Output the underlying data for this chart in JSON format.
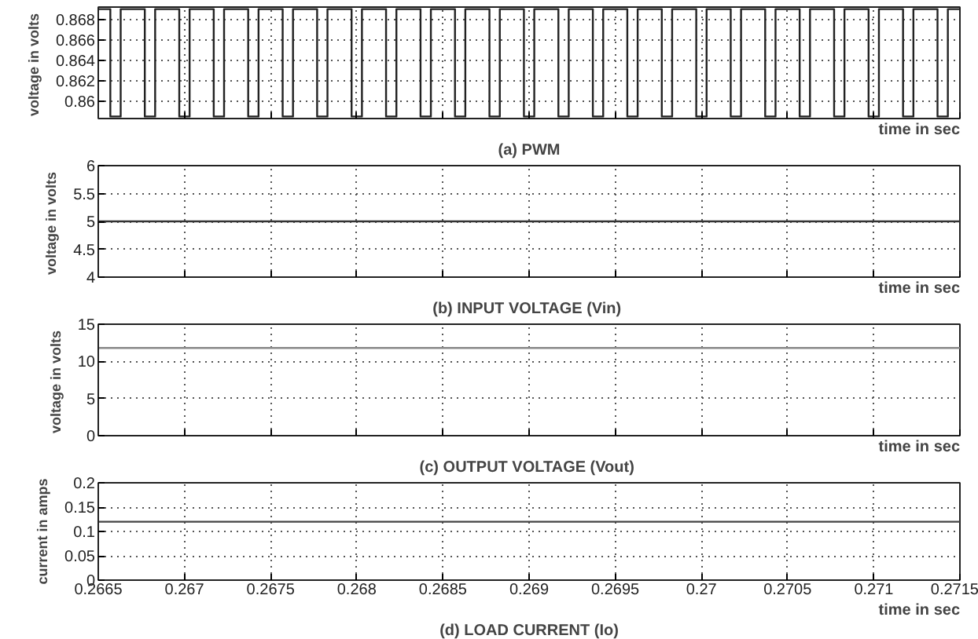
{
  "chart_data": [
    {
      "type": "step",
      "title": "(a) PWM",
      "xlabel": "time in sec",
      "ylabel": "voltage  in volts",
      "xlim": [
        0.2665,
        0.2715
      ],
      "ylim": [
        0.8583,
        0.8692
      ],
      "xticks": [
        0.2665,
        0.267,
        0.2675,
        0.268,
        0.2685,
        0.269,
        0.2695,
        0.27,
        0.2705,
        0.271,
        0.2715
      ],
      "yticks": [
        0.86,
        0.862,
        0.864,
        0.866,
        0.868
      ],
      "grid": true,
      "tick_labels": "y",
      "line_style": "solid",
      "series": [
        {
          "color": "#222222",
          "x": [
            0.2665,
            0.26657,
            0.26663,
            0.26677,
            0.26683,
            0.26697,
            0.26703,
            0.26717,
            0.26723,
            0.26737,
            0.26743,
            0.26757,
            0.26763,
            0.26777,
            0.26783,
            0.26797,
            0.26803,
            0.26817,
            0.26823,
            0.26837,
            0.26843,
            0.26857,
            0.26863,
            0.26877,
            0.26883,
            0.26897,
            0.26903,
            0.26917,
            0.26923,
            0.26937,
            0.26943,
            0.26957,
            0.26963,
            0.26977,
            0.26983,
            0.26997,
            0.27003,
            0.27017,
            0.27023,
            0.27037,
            0.27043,
            0.27057,
            0.27063,
            0.27077,
            0.27083,
            0.27097,
            0.27103,
            0.27117,
            0.27123,
            0.27137,
            0.27143,
            0.2715
          ],
          "values": [
            0.869,
            0.8585,
            0.869,
            0.8585,
            0.869,
            0.8585,
            0.869,
            0.8585,
            0.869,
            0.8585,
            0.869,
            0.8585,
            0.869,
            0.8585,
            0.869,
            0.8585,
            0.869,
            0.8585,
            0.869,
            0.8585,
            0.869,
            0.8585,
            0.869,
            0.8585,
            0.869,
            0.8585,
            0.869,
            0.8585,
            0.869,
            0.8585,
            0.869,
            0.8585,
            0.869,
            0.8585,
            0.869,
            0.8585,
            0.869,
            0.8585,
            0.869,
            0.8585,
            0.869,
            0.8585,
            0.869,
            0.8585,
            0.869,
            0.8585,
            0.869,
            0.8585,
            0.869,
            0.8585,
            0.869,
            0.869
          ]
        }
      ]
    },
    {
      "type": "line",
      "title": "(b) INPUT VOLTAGE  (Vin)",
      "xlabel": "time in sec",
      "ylabel": "voltage  in volts",
      "xlim": [
        0.2665,
        0.2715
      ],
      "ylim": [
        4,
        6
      ],
      "xticks": [
        0.2665,
        0.267,
        0.2675,
        0.268,
        0.2685,
        0.269,
        0.2695,
        0.27,
        0.2705,
        0.271,
        0.2715
      ],
      "yticks": [
        4,
        4.5,
        5,
        5.5,
        6
      ],
      "grid": true,
      "tick_labels": "y",
      "line_style": "solid",
      "series": [
        {
          "color": "#333333",
          "x": [
            0.2665,
            0.2715
          ],
          "values": [
            5,
            5
          ]
        }
      ]
    },
    {
      "type": "line",
      "title": "(c) OUTPUT VOLTAGE  (Vout)",
      "xlabel": "time in sec",
      "ylabel": "voltage  in volts",
      "xlim": [
        0.2665,
        0.2715
      ],
      "ylim": [
        0,
        15
      ],
      "xticks": [
        0.2665,
        0.267,
        0.2675,
        0.268,
        0.2685,
        0.269,
        0.2695,
        0.27,
        0.2705,
        0.271,
        0.2715
      ],
      "yticks": [
        0,
        5,
        10,
        15
      ],
      "grid": true,
      "tick_labels": "y",
      "line_style": "solid",
      "series": [
        {
          "color": "#888888",
          "x": [
            0.2665,
            0.2715
          ],
          "values": [
            11.8,
            11.8
          ]
        }
      ]
    },
    {
      "type": "line",
      "title": "(d) LOAD CURRENT (Io)",
      "xlabel": "time in sec",
      "ylabel": "current in amps",
      "xlim": [
        0.2665,
        0.2715
      ],
      "ylim": [
        0,
        0.2
      ],
      "xticks": [
        0.2665,
        0.267,
        0.2675,
        0.268,
        0.2685,
        0.269,
        0.2695,
        0.27,
        0.2705,
        0.271,
        0.2715
      ],
      "yticks": [
        0,
        0.05,
        0.1,
        0.15,
        0.2
      ],
      "grid": true,
      "line_style": "solid",
      "series": [
        {
          "color": "#444444",
          "x": [
            0.2665,
            0.2715
          ],
          "values": [
            0.12,
            0.12
          ]
        }
      ]
    }
  ]
}
